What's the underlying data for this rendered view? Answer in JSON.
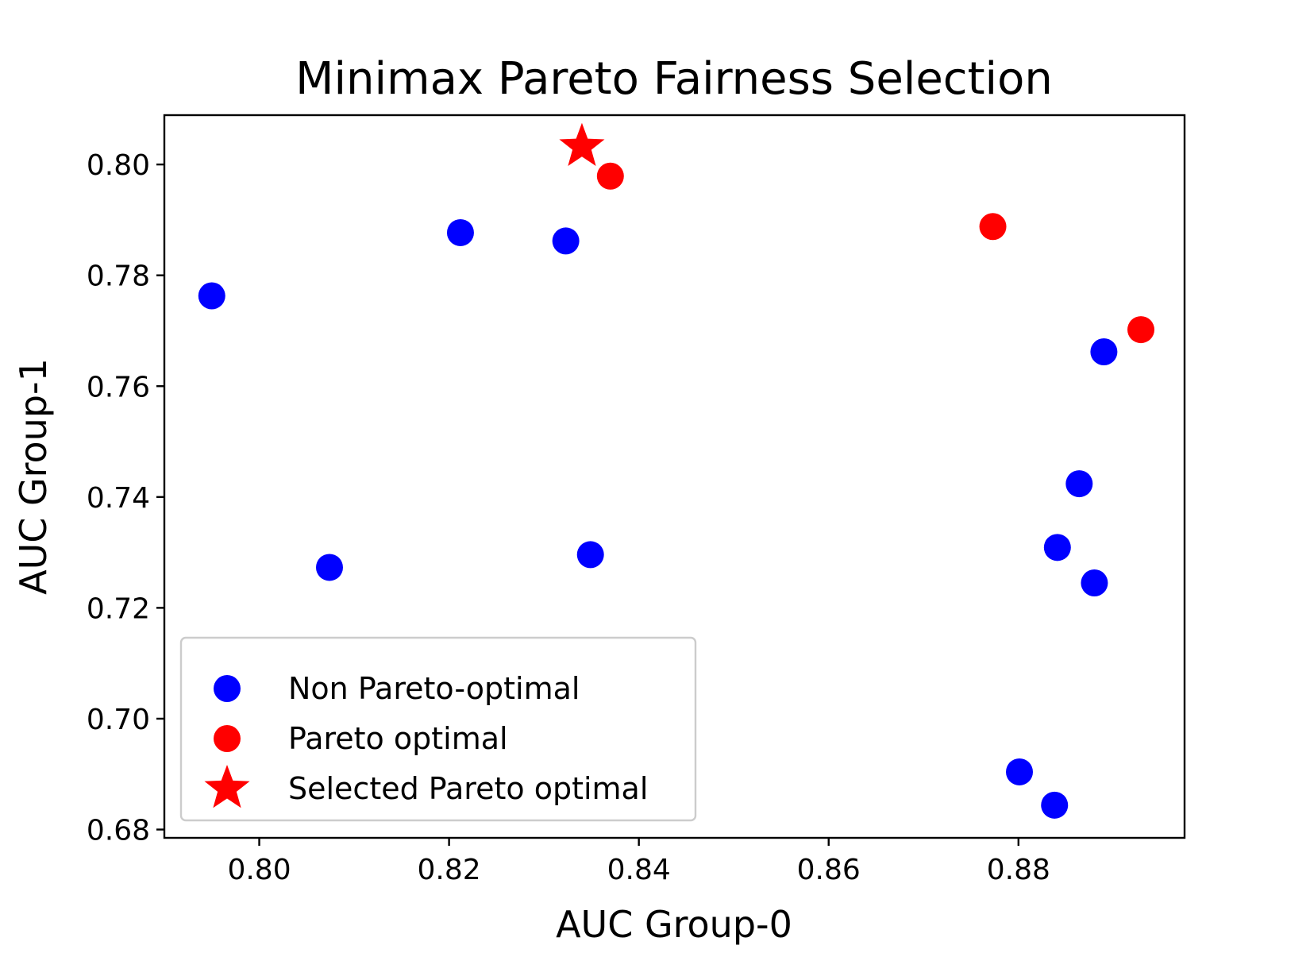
{
  "chart_data": {
    "type": "scatter",
    "title": "Minimax Pareto Fairness Selection",
    "xlabel": "AUC Group-0",
    "ylabel": "AUC Group-1",
    "xlim": [
      0.79,
      0.8975
    ],
    "ylim": [
      0.6785,
      0.8089
    ],
    "x_ticks": [
      0.8,
      0.82,
      0.84,
      0.86,
      0.88
    ],
    "x_tick_labels": [
      "0.80",
      "0.82",
      "0.84",
      "0.86",
      "0.88"
    ],
    "y_ticks": [
      0.68,
      0.7,
      0.72,
      0.74,
      0.76,
      0.78,
      0.8
    ],
    "y_tick_labels": [
      "0.68",
      "0.70",
      "0.72",
      "0.74",
      "0.76",
      "0.78",
      "0.80"
    ],
    "grid": false,
    "legend_position": "lower-left",
    "series": [
      {
        "name": "Non Pareto-optimal",
        "color": "#0000ff",
        "marker": "circle",
        "points": [
          {
            "x": 0.795,
            "y": 0.7763
          },
          {
            "x": 0.8212,
            "y": 0.7877
          },
          {
            "x": 0.8323,
            "y": 0.7862
          },
          {
            "x": 0.8074,
            "y": 0.7273
          },
          {
            "x": 0.8349,
            "y": 0.7296
          },
          {
            "x": 0.889,
            "y": 0.7662
          },
          {
            "x": 0.8864,
            "y": 0.7424
          },
          {
            "x": 0.8841,
            "y": 0.7309
          },
          {
            "x": 0.888,
            "y": 0.7245
          },
          {
            "x": 0.8801,
            "y": 0.6904
          },
          {
            "x": 0.8838,
            "y": 0.6844
          }
        ]
      },
      {
        "name": "Pareto optimal",
        "color": "#ff0000",
        "marker": "circle",
        "points": [
          {
            "x": 0.837,
            "y": 0.7979
          },
          {
            "x": 0.8773,
            "y": 0.7888
          },
          {
            "x": 0.8929,
            "y": 0.7702
          }
        ]
      },
      {
        "name": "Selected Pareto optimal",
        "color": "#ff0000",
        "marker": "star",
        "points": [
          {
            "x": 0.834,
            "y": 0.8032
          }
        ]
      }
    ]
  }
}
